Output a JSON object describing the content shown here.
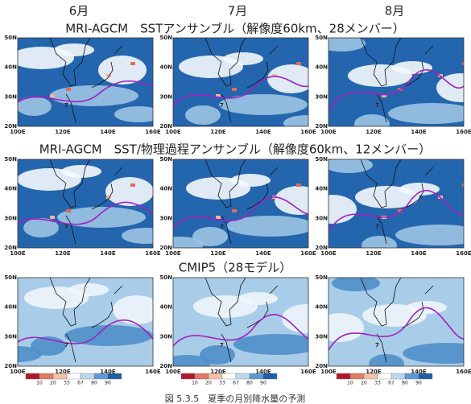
{
  "months": [
    "6月",
    "7月",
    "8月"
  ],
  "rows": [
    {
      "title": "MRI-AGCM　SSTアンサンブル（解像度60km、28メンバー）"
    },
    {
      "title": "MRI-AGCM　SST/物理過程アンサンブル（解像度60km、12メンバー）"
    },
    {
      "title": "CMIP5（28モデル）"
    }
  ],
  "lat_labels": [
    "50N",
    "40N",
    "30N",
    "20N"
  ],
  "lon_labels": [
    "100E",
    "120E",
    "140E",
    "160E"
  ],
  "contour_label": 7,
  "colorbar": {
    "labels": [
      10,
      20,
      33,
      67,
      80,
      90
    ]
  },
  "caption": "図 5.3.5　夏季の月別降水量の予測"
}
